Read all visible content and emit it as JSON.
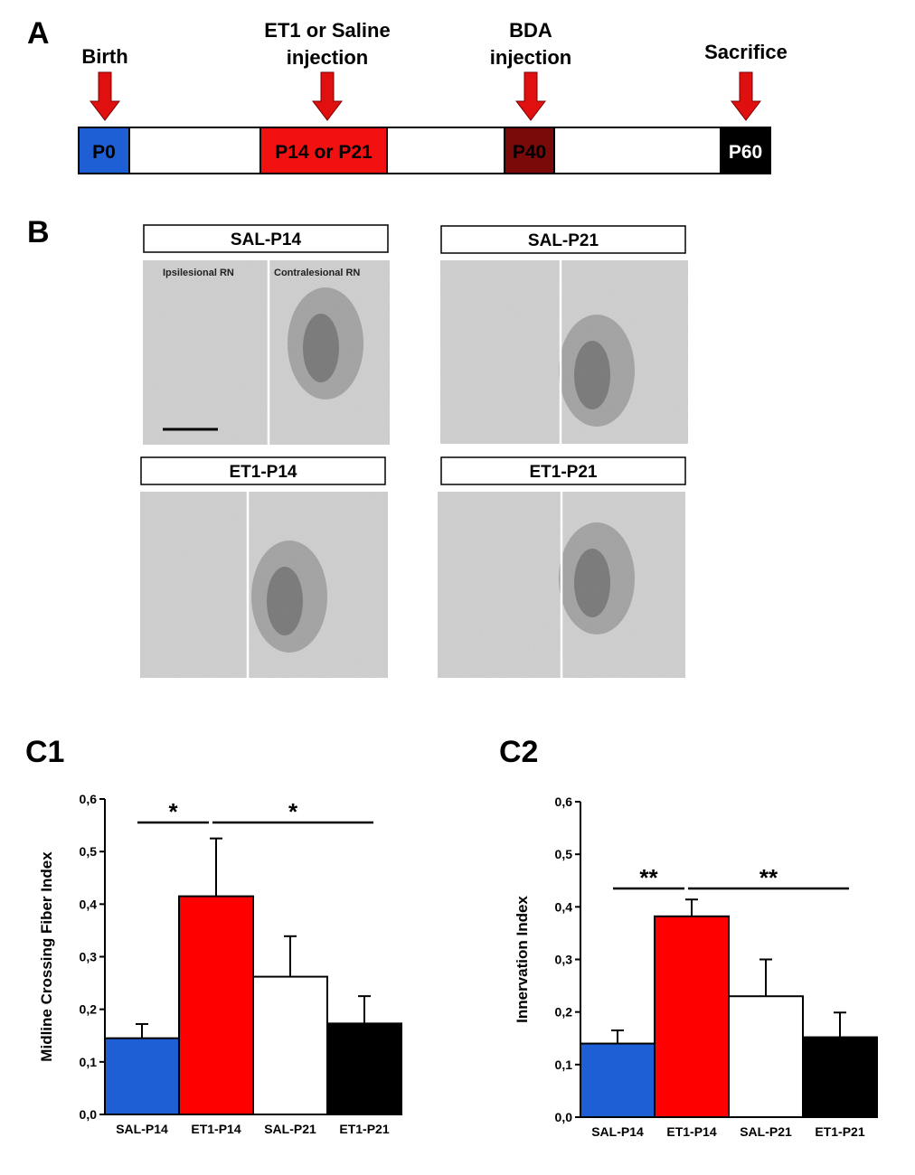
{
  "panels": {
    "a": "A",
    "b": "B",
    "c1": "C1",
    "c2": "C2"
  },
  "timeline": {
    "events": [
      {
        "id": "birth",
        "label_lines": [
          "Birth"
        ]
      },
      {
        "id": "injection",
        "label_lines": [
          "ET1 or Saline",
          "injection"
        ]
      },
      {
        "id": "bda",
        "label_lines": [
          "BDA",
          "injection"
        ]
      },
      {
        "id": "sacrifice",
        "label_lines": [
          "Sacrifice"
        ]
      }
    ],
    "segments": [
      {
        "id": "p0",
        "label": "P0",
        "color": "#1f5fd6",
        "text_color": "#000000"
      },
      {
        "id": "p14",
        "label": "P14 or P21",
        "color": "#f21111",
        "text_color": "#000000"
      },
      {
        "id": "p40",
        "label": "P40",
        "color": "#7a0a0a",
        "text_color": "#000000"
      },
      {
        "id": "p60",
        "label": "P60",
        "color": "#000000",
        "text_color": "#ffffff"
      }
    ],
    "arrow_color": "#e01010"
  },
  "micrographs": [
    {
      "id": "sal-p14",
      "title": "SAL-P14",
      "left_label": "Ipsilesional RN",
      "right_label": "Contralesional RN",
      "scale_bar": true
    },
    {
      "id": "sal-p21",
      "title": "SAL-P21"
    },
    {
      "id": "et1-p14",
      "title": "ET1-P14"
    },
    {
      "id": "et1-p21",
      "title": "ET1-P21"
    }
  ],
  "chart_data": [
    {
      "type": "bar",
      "panel": "C1",
      "categories": [
        "SAL-P14",
        "ET1-P14",
        "SAL-P21",
        "ET1-P21"
      ],
      "values": [
        0.145,
        0.415,
        0.262,
        0.173
      ],
      "errors": [
        0.027,
        0.11,
        0.077,
        0.052
      ],
      "colors": [
        "#1f5fd6",
        "#ff0000",
        "#ffffff",
        "#000000"
      ],
      "ylabel": "Midline Crossing Fiber Index",
      "ylim": [
        0,
        0.6
      ],
      "yticks": [
        "0,0",
        "0,1",
        "0,2",
        "0,3",
        "0,4",
        "0,5",
        "0,6"
      ],
      "significance": [
        {
          "from": 0,
          "to": 1,
          "label": "*"
        },
        {
          "from": 1,
          "to": 3,
          "label": "*"
        }
      ]
    },
    {
      "type": "bar",
      "panel": "C2",
      "categories": [
        "SAL-P14",
        "ET1-P14",
        "SAL-P21",
        "ET1-P21"
      ],
      "values": [
        0.14,
        0.382,
        0.23,
        0.152
      ],
      "errors": [
        0.025,
        0.032,
        0.07,
        0.047
      ],
      "colors": [
        "#1f5fd6",
        "#ff0000",
        "#ffffff",
        "#000000"
      ],
      "ylabel": "Innervation Index",
      "ylim": [
        0,
        0.6
      ],
      "yticks": [
        "0,0",
        "0,1",
        "0,2",
        "0,3",
        "0,4",
        "0,5",
        "0,6"
      ],
      "significance": [
        {
          "from": 0,
          "to": 1,
          "label": "**"
        },
        {
          "from": 1,
          "to": 3,
          "label": "**"
        }
      ]
    }
  ]
}
